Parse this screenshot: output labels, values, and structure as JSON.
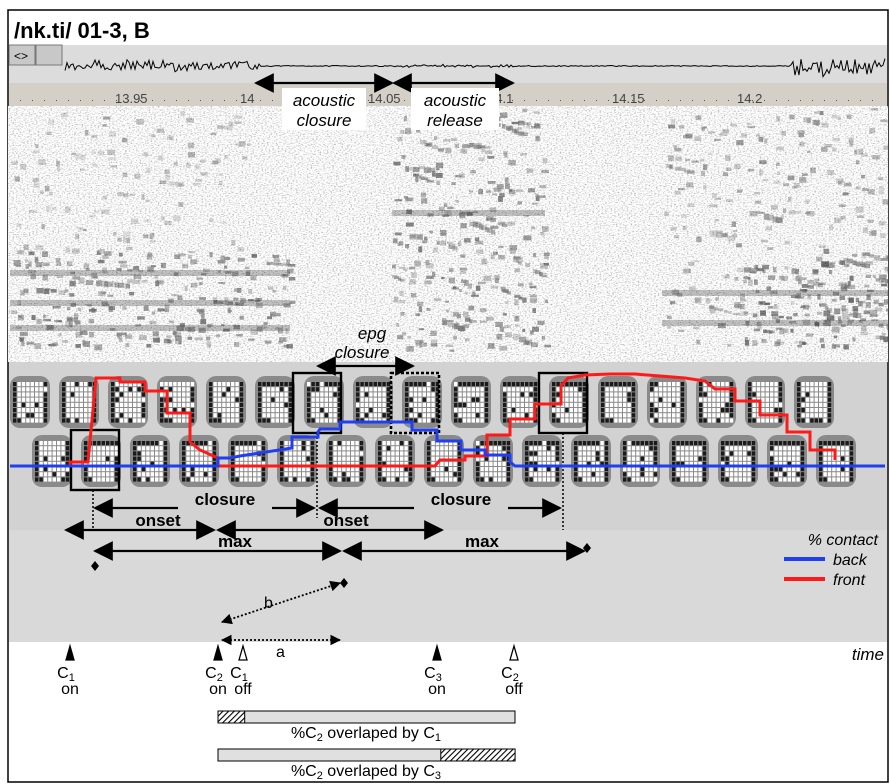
{
  "title": "/nk.ti/ 01-3, B",
  "time_axis": {
    "ticks": [
      "13.95",
      "14",
      "14.05",
      "14.1",
      "14.15",
      "14.2"
    ]
  },
  "acoustic": {
    "closure": [
      "acoustic",
      "closure"
    ],
    "release": [
      "acoustic",
      "release"
    ]
  },
  "epg": {
    "closure_label": [
      "epg",
      "closure"
    ],
    "frame_rows": 2,
    "frames_per_row": 17
  },
  "intervals": {
    "closure_1": "closure",
    "closure_2": "closure",
    "onset_1": "onset",
    "onset_2": "onset",
    "max_1": "max",
    "max_2": "max"
  },
  "legend": {
    "heading": "% contact",
    "back": {
      "label": "back",
      "color": "#1f3ff0"
    },
    "front": {
      "label": "front",
      "color": "#ff1a1a"
    }
  },
  "contact_traces": {
    "x_axis": "time",
    "back": [
      [
        10,
        466
      ],
      [
        100,
        466
      ],
      [
        218,
        466
      ],
      [
        218,
        458
      ],
      [
        230,
        458
      ],
      [
        240,
        456
      ],
      [
        292,
        448
      ],
      [
        292,
        437
      ],
      [
        318,
        437
      ],
      [
        318,
        432
      ],
      [
        320,
        429
      ],
      [
        340,
        429
      ],
      [
        340,
        422
      ],
      [
        412,
        422
      ],
      [
        412,
        430
      ],
      [
        437,
        430
      ],
      [
        437,
        441
      ],
      [
        461,
        441
      ],
      [
        461,
        450
      ],
      [
        485,
        450
      ],
      [
        485,
        455
      ],
      [
        510,
        455
      ],
      [
        510,
        462
      ],
      [
        515,
        466
      ],
      [
        885,
        466
      ]
    ],
    "front": [
      [
        10,
        466
      ],
      [
        70,
        466
      ],
      [
        70,
        462
      ],
      [
        88,
        462
      ],
      [
        96,
        378
      ],
      [
        120,
        378
      ],
      [
        120,
        382
      ],
      [
        145,
        382
      ],
      [
        145,
        391
      ],
      [
        167,
        391
      ],
      [
        167,
        413
      ],
      [
        190,
        413
      ],
      [
        190,
        442
      ],
      [
        200,
        450
      ],
      [
        218,
        458
      ],
      [
        218,
        466
      ],
      [
        435,
        466
      ],
      [
        440,
        460
      ],
      [
        465,
        460
      ],
      [
        465,
        456
      ],
      [
        487,
        456
      ],
      [
        487,
        435
      ],
      [
        510,
        435
      ],
      [
        510,
        419
      ],
      [
        535,
        419
      ],
      [
        535,
        404
      ],
      [
        561,
        404
      ],
      [
        561,
        386
      ],
      [
        568,
        378
      ],
      [
        585,
        375
      ],
      [
        610,
        374
      ],
      [
        635,
        374
      ],
      [
        660,
        376
      ],
      [
        685,
        378
      ],
      [
        705,
        381
      ],
      [
        715,
        389
      ],
      [
        735,
        389
      ],
      [
        735,
        401
      ],
      [
        760,
        401
      ],
      [
        760,
        415
      ],
      [
        787,
        415
      ],
      [
        787,
        432
      ],
      [
        810,
        432
      ],
      [
        810,
        450
      ],
      [
        835,
        450
      ],
      [
        835,
        460
      ]
    ]
  },
  "events": [
    {
      "sub": "1",
      "l1": "C",
      "l2": "on"
    },
    {
      "sub": "2",
      "l1": "C",
      "l2": "on"
    },
    {
      "sub": "1",
      "l1": "C",
      "l2": "off"
    },
    {
      "sub": "3",
      "l1": "C",
      "l2": "on"
    },
    {
      "sub": "2",
      "l1": "C",
      "l2": "off"
    }
  ],
  "annotations": {
    "a": "a",
    "b": "b"
  },
  "overlap_bars": [
    {
      "label": "%C2 overlaped by C1",
      "pre": "%C",
      "sub": "2",
      "mid": " overlaped by C",
      "sub2": "1",
      "overlap_fraction": 0.09,
      "overlap_side": "start"
    },
    {
      "label": "%C2 overlaped by C3",
      "pre": "%C",
      "sub": "2",
      "mid": " overlaped by C",
      "sub2": "3",
      "overlap_fraction": 0.25,
      "overlap_side": "end"
    }
  ]
}
